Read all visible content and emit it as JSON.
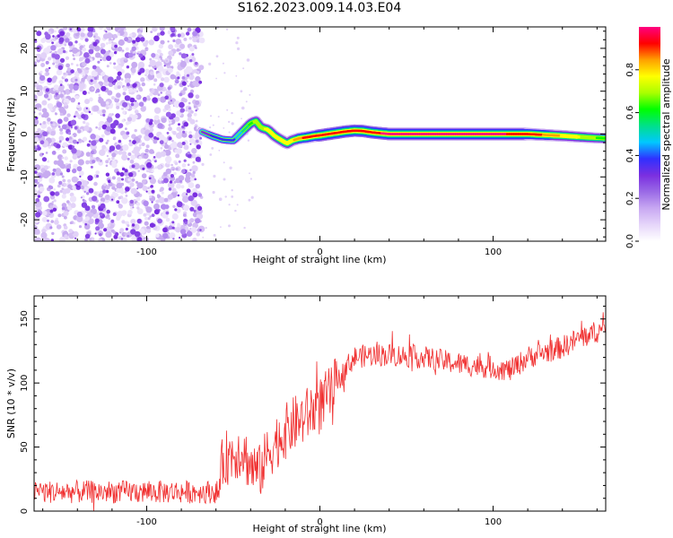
{
  "figure": {
    "title": "S162.2023.009.14.03.E04"
  },
  "chart_data": [
    {
      "type": "heatmap",
      "title": "S162.2023.009.14.03.E04",
      "xlabel": "Height of straight line (km)",
      "ylabel": "Frequency (Hz)",
      "xlim": [
        -165,
        165
      ],
      "ylim": [
        -25,
        25
      ],
      "xticks": [
        -100,
        0,
        100
      ],
      "xtick_labels": [
        "-100",
        "0",
        "100"
      ],
      "yticks": [
        -20,
        -10,
        0,
        10,
        20
      ],
      "ytick_labels": [
        "-20",
        "-10",
        "0",
        "10",
        "20"
      ],
      "grid": false,
      "colorbar": {
        "label": "Normalized spectral amplitude",
        "range": [
          0,
          1
        ],
        "ticks": [
          0.0,
          0.2,
          0.4,
          0.6,
          0.8
        ],
        "tick_labels": [
          "0.0",
          "0.2",
          "0.4",
          "0.6",
          "0.8"
        ],
        "colormap": [
          "#ffffff",
          "#e6d6fa",
          "#c8a8f2",
          "#9a6ae6",
          "#7a2fe0",
          "#3030ff",
          "#00c8ff",
          "#00e08a",
          "#00ff00",
          "#aaff00",
          "#ffff00",
          "#ffa000",
          "#ff0000",
          "#ff0080"
        ]
      },
      "noise_region_x": [
        -165,
        -68
      ],
      "doppler_track": {
        "x": [
          -68,
          -62,
          -56,
          -50,
          -45,
          -40,
          -37,
          -34,
          -30,
          -26,
          -22,
          -19,
          -16,
          -12,
          -8,
          -4,
          0,
          5,
          10,
          15,
          20,
          25,
          30,
          40,
          60,
          80,
          100,
          120,
          140,
          155,
          165
        ],
        "freq": [
          0.5,
          -0.5,
          -1.3,
          -1.5,
          0.5,
          2.5,
          3.0,
          1.5,
          1.0,
          -0.5,
          -1.5,
          -2.2,
          -1.5,
          -1.0,
          -0.8,
          -0.5,
          -0.3,
          0.0,
          0.3,
          0.6,
          0.8,
          0.7,
          0.4,
          0.0,
          0.0,
          0.0,
          0.0,
          0.0,
          -0.4,
          -0.8,
          -1.0
        ],
        "amplitude": [
          0.3,
          0.35,
          0.35,
          0.4,
          0.5,
          0.6,
          0.7,
          0.7,
          0.75,
          0.75,
          0.8,
          0.8,
          0.8,
          0.85,
          0.9,
          0.9,
          0.95,
          0.95,
          0.95,
          0.95,
          0.95,
          0.95,
          0.95,
          0.97,
          0.97,
          0.97,
          0.97,
          0.95,
          0.8,
          0.7,
          0.6
        ]
      }
    },
    {
      "type": "line",
      "xlabel": "Height of straight line (km)",
      "ylabel": "SNR (10 * v/v)",
      "xlim": [
        -165,
        165
      ],
      "ylim": [
        0,
        168
      ],
      "xticks": [
        -100,
        0,
        100
      ],
      "xtick_labels": [
        "-100",
        "0",
        "100"
      ],
      "yticks": [
        0,
        50,
        100,
        150
      ],
      "ytick_labels": [
        "0",
        "50",
        "100",
        "150"
      ],
      "grid": false,
      "series_color": "#f03030",
      "trend": {
        "x": [
          -165,
          -120,
          -80,
          -58,
          -56,
          -50,
          -45,
          -40,
          -35,
          -30,
          -25,
          -20,
          -15,
          -10,
          -5,
          0,
          5,
          10,
          15,
          20,
          30,
          40,
          60,
          80,
          100,
          110,
          120,
          140,
          150,
          160,
          165
        ],
        "y": [
          15,
          15,
          15,
          15,
          40,
          45,
          48,
          35,
          30,
          45,
          55,
          62,
          68,
          72,
          78,
          83,
          90,
          100,
          112,
          120,
          122,
          122,
          120,
          115,
          112,
          110,
          120,
          128,
          135,
          140,
          142
        ]
      },
      "noise_amplitude": 9
    }
  ]
}
